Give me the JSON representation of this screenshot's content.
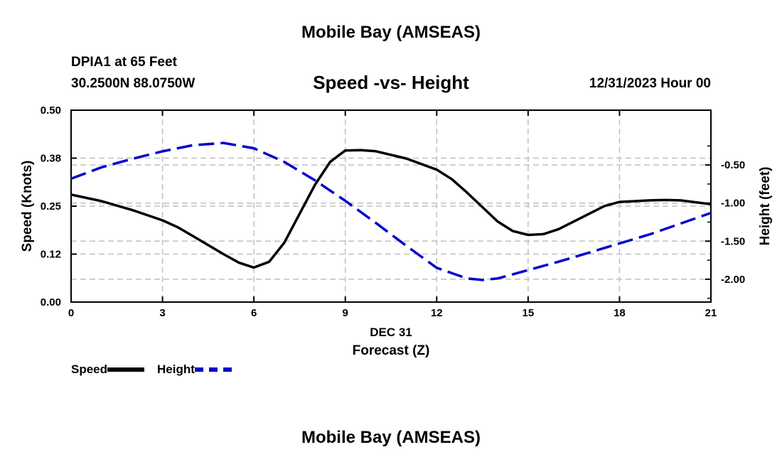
{
  "header": {
    "title": "Mobile Bay (AMSEAS)",
    "station": "DPIA1 at 65 Feet",
    "coords": "30.2500N  88.0750W",
    "subtitle": "Speed -vs- Height",
    "date_hour": "12/31/2023 Hour 00"
  },
  "footer": {
    "title": "Mobile Bay (AMSEAS)"
  },
  "legend": {
    "speed_label": "Speed",
    "height_label": "Height"
  },
  "chart_data": {
    "type": "line",
    "title": "Speed -vs- Height",
    "xlabel": "Forecast (Z)",
    "date_label": "DEC 31",
    "xlim": [
      0,
      21
    ],
    "x_ticks": [
      0,
      3,
      6,
      9,
      12,
      15,
      18,
      21
    ],
    "y_left": {
      "label": "Speed (Knots)",
      "lim": [
        0,
        0.5
      ],
      "ticks": [
        0.0,
        0.125,
        0.25,
        0.375,
        0.5
      ],
      "tick_labels": [
        "0.00",
        "0.12",
        "0.25",
        "0.38",
        "0.50"
      ]
    },
    "y_right": {
      "label": "Height (feet)",
      "lim": [
        -2.3,
        0.22
      ],
      "ticks": [
        -2.0,
        -1.5,
        -1.0,
        -0.5
      ],
      "tick_labels": [
        "-2.00",
        "-1.50",
        "-1.00",
        "-0.50"
      ]
    },
    "grid": true,
    "series": [
      {
        "name": "Speed",
        "axis": "left",
        "color": "#000000",
        "style": "solid",
        "x": [
          0,
          1,
          2,
          3,
          3.5,
          4,
          5,
          5.5,
          6,
          6.5,
          7,
          7.5,
          8,
          8.5,
          9,
          9.5,
          10,
          11,
          12,
          12.5,
          13,
          14,
          14.5,
          15,
          15.5,
          16,
          17,
          17.5,
          18,
          19,
          19.5,
          20,
          21
        ],
        "values": [
          0.28,
          0.263,
          0.24,
          0.213,
          0.195,
          0.172,
          0.125,
          0.103,
          0.09,
          0.105,
          0.155,
          0.23,
          0.305,
          0.365,
          0.395,
          0.396,
          0.393,
          0.374,
          0.345,
          0.32,
          0.285,
          0.21,
          0.185,
          0.175,
          0.177,
          0.19,
          0.23,
          0.25,
          0.261,
          0.265,
          0.266,
          0.265,
          0.255
        ]
      },
      {
        "name": "Height",
        "axis": "right",
        "color": "#0000cc",
        "style": "dashed",
        "x": [
          0,
          1,
          2,
          3,
          4,
          5,
          6,
          7,
          8,
          9,
          10,
          11,
          12,
          13,
          13.5,
          14,
          15,
          16,
          17,
          18,
          19,
          20,
          21
        ],
        "values": [
          -0.68,
          -0.53,
          -0.42,
          -0.32,
          -0.24,
          -0.21,
          -0.28,
          -0.46,
          -0.7,
          -0.97,
          -1.26,
          -1.56,
          -1.85,
          -1.99,
          -2.01,
          -1.99,
          -1.88,
          -1.77,
          -1.65,
          -1.53,
          -1.41,
          -1.27,
          -1.13
        ]
      }
    ]
  }
}
